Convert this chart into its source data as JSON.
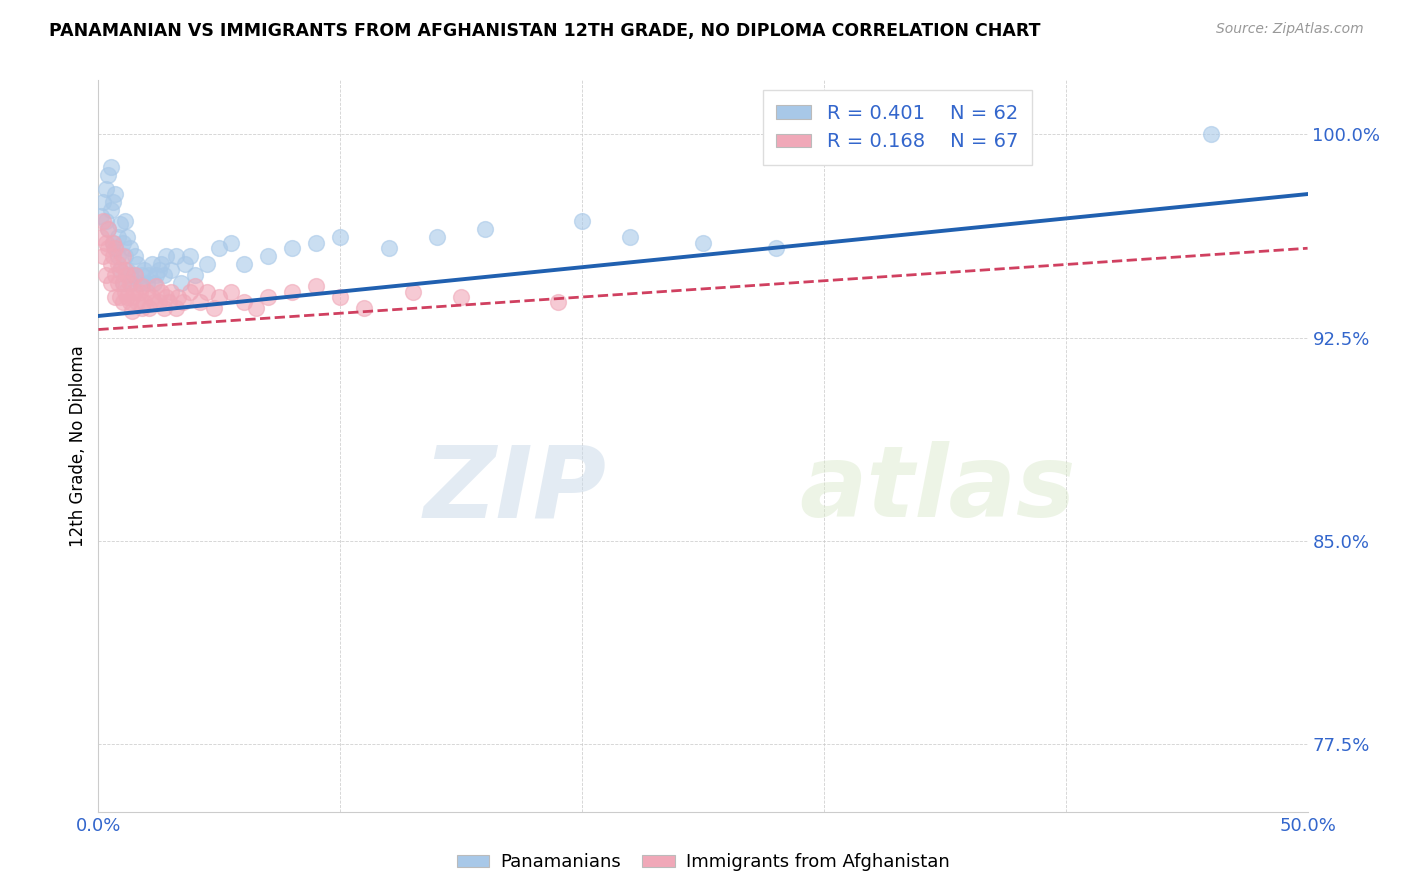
{
  "title": "PANAMANIAN VS IMMIGRANTS FROM AFGHANISTAN 12TH GRADE, NO DIPLOMA CORRELATION CHART",
  "source": "Source: ZipAtlas.com",
  "ylabel": "12th Grade, No Diploma",
  "xmin": 0.0,
  "xmax": 0.5,
  "ymin": 0.75,
  "ymax": 1.02,
  "xticks": [
    0.0,
    0.1,
    0.2,
    0.3,
    0.4,
    0.5
  ],
  "xticklabels": [
    "0.0%",
    "",
    "",
    "",
    "",
    "50.0%"
  ],
  "yticks": [
    0.775,
    0.85,
    0.925,
    1.0
  ],
  "yticklabels": [
    "77.5%",
    "85.0%",
    "92.5%",
    "100.0%"
  ],
  "blue_R": 0.401,
  "blue_N": 62,
  "pink_R": 0.168,
  "pink_N": 67,
  "blue_color": "#a8c8e8",
  "pink_color": "#f0a8b8",
  "blue_line_color": "#2060b0",
  "pink_line_color": "#d04060",
  "legend_label_blue": "Panamanians",
  "legend_label_pink": "Immigrants from Afghanistan",
  "watermark_zip": "ZIP",
  "watermark_atlas": "atlas",
  "blue_scatter_x": [
    0.001,
    0.002,
    0.003,
    0.003,
    0.004,
    0.004,
    0.005,
    0.005,
    0.006,
    0.006,
    0.007,
    0.007,
    0.008,
    0.008,
    0.009,
    0.009,
    0.01,
    0.01,
    0.011,
    0.011,
    0.012,
    0.012,
    0.013,
    0.013,
    0.014,
    0.015,
    0.015,
    0.016,
    0.017,
    0.018,
    0.019,
    0.02,
    0.021,
    0.022,
    0.023,
    0.024,
    0.025,
    0.026,
    0.027,
    0.028,
    0.03,
    0.032,
    0.034,
    0.036,
    0.038,
    0.04,
    0.045,
    0.05,
    0.055,
    0.06,
    0.07,
    0.08,
    0.09,
    0.1,
    0.12,
    0.14,
    0.16,
    0.2,
    0.22,
    0.25,
    0.28,
    0.46
  ],
  "blue_scatter_y": [
    0.97,
    0.975,
    0.968,
    0.98,
    0.965,
    0.985,
    0.972,
    0.988,
    0.96,
    0.975,
    0.958,
    0.978,
    0.962,
    0.955,
    0.967,
    0.95,
    0.96,
    0.945,
    0.955,
    0.968,
    0.95,
    0.962,
    0.948,
    0.958,
    0.945,
    0.955,
    0.948,
    0.952,
    0.945,
    0.948,
    0.95,
    0.945,
    0.948,
    0.952,
    0.945,
    0.948,
    0.95,
    0.952,
    0.948,
    0.955,
    0.95,
    0.955,
    0.945,
    0.952,
    0.955,
    0.948,
    0.952,
    0.958,
    0.96,
    0.952,
    0.955,
    0.958,
    0.96,
    0.962,
    0.958,
    0.962,
    0.965,
    0.968,
    0.962,
    0.96,
    0.958,
    1.0
  ],
  "pink_scatter_x": [
    0.001,
    0.002,
    0.002,
    0.003,
    0.003,
    0.004,
    0.004,
    0.005,
    0.005,
    0.006,
    0.006,
    0.007,
    0.007,
    0.007,
    0.008,
    0.008,
    0.009,
    0.009,
    0.01,
    0.01,
    0.01,
    0.011,
    0.011,
    0.012,
    0.012,
    0.013,
    0.013,
    0.014,
    0.014,
    0.015,
    0.015,
    0.016,
    0.017,
    0.018,
    0.018,
    0.019,
    0.02,
    0.021,
    0.022,
    0.023,
    0.024,
    0.025,
    0.026,
    0.027,
    0.028,
    0.029,
    0.03,
    0.032,
    0.033,
    0.035,
    0.038,
    0.04,
    0.042,
    0.045,
    0.048,
    0.05,
    0.055,
    0.06,
    0.065,
    0.07,
    0.08,
    0.09,
    0.1,
    0.11,
    0.13,
    0.15,
    0.19
  ],
  "pink_scatter_y": [
    0.962,
    0.968,
    0.955,
    0.96,
    0.948,
    0.958,
    0.965,
    0.952,
    0.945,
    0.955,
    0.96,
    0.948,
    0.958,
    0.94,
    0.952,
    0.945,
    0.94,
    0.95,
    0.945,
    0.938,
    0.955,
    0.942,
    0.95,
    0.94,
    0.948,
    0.938,
    0.945,
    0.94,
    0.935,
    0.942,
    0.948,
    0.938,
    0.942,
    0.936,
    0.944,
    0.938,
    0.942,
    0.936,
    0.94,
    0.938,
    0.944,
    0.938,
    0.942,
    0.936,
    0.94,
    0.938,
    0.942,
    0.936,
    0.94,
    0.938,
    0.942,
    0.944,
    0.938,
    0.942,
    0.936,
    0.94,
    0.942,
    0.938,
    0.936,
    0.94,
    0.942,
    0.944,
    0.94,
    0.936,
    0.942,
    0.94,
    0.938
  ]
}
